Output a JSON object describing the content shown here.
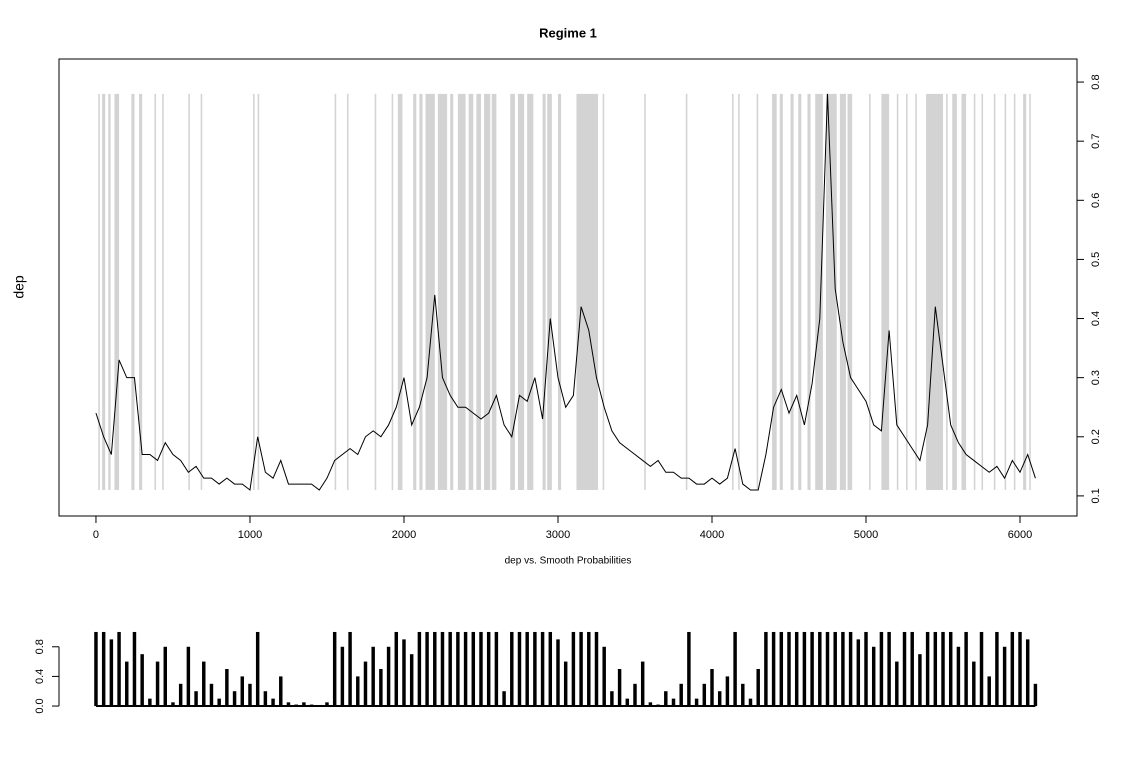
{
  "chart_data": [
    {
      "type": "line",
      "title": "Regime 1",
      "y_label": "dep",
      "x_label": "dep vs. Smooth Probabilities",
      "color": "#000000",
      "shade_color": "#d3d3d3",
      "y_axis_side": "right",
      "xlim": [
        -240,
        6370
      ],
      "xticks": [
        0,
        1000,
        2000,
        3000,
        4000,
        5000,
        6000
      ],
      "ylim": [
        0.066,
        0.839
      ],
      "yticks": [
        0.1,
        0.2,
        0.3,
        0.4,
        0.5,
        0.6,
        0.7,
        0.8
      ],
      "x": [
        0,
        50,
        100,
        150,
        200,
        250,
        300,
        350,
        400,
        450,
        500,
        550,
        600,
        650,
        700,
        750,
        800,
        850,
        900,
        950,
        1000,
        1050,
        1100,
        1150,
        1200,
        1250,
        1300,
        1350,
        1400,
        1450,
        1500,
        1550,
        1600,
        1650,
        1700,
        1750,
        1800,
        1850,
        1900,
        1950,
        2000,
        2050,
        2100,
        2150,
        2200,
        2250,
        2300,
        2350,
        2400,
        2450,
        2500,
        2550,
        2600,
        2650,
        2700,
        2750,
        2800,
        2850,
        2900,
        2950,
        3000,
        3050,
        3100,
        3150,
        3200,
        3250,
        3300,
        3350,
        3400,
        3450,
        3500,
        3550,
        3600,
        3650,
        3700,
        3750,
        3800,
        3850,
        3900,
        3950,
        4000,
        4050,
        4100,
        4150,
        4200,
        4250,
        4300,
        4350,
        4400,
        4450,
        4500,
        4550,
        4600,
        4650,
        4700,
        4750,
        4800,
        4850,
        4900,
        4950,
        5000,
        5050,
        5100,
        5150,
        5200,
        5250,
        5300,
        5350,
        5400,
        5450,
        5500,
        5550,
        5600,
        5650,
        5700,
        5750,
        5800,
        5850,
        5900,
        5950,
        6000,
        6050,
        6100
      ],
      "values": [
        0.24,
        0.2,
        0.17,
        0.33,
        0.3,
        0.3,
        0.17,
        0.17,
        0.16,
        0.19,
        0.17,
        0.16,
        0.14,
        0.15,
        0.13,
        0.13,
        0.12,
        0.13,
        0.12,
        0.12,
        0.11,
        0.2,
        0.14,
        0.13,
        0.16,
        0.12,
        0.12,
        0.12,
        0.12,
        0.11,
        0.13,
        0.16,
        0.17,
        0.18,
        0.17,
        0.2,
        0.21,
        0.2,
        0.22,
        0.25,
        0.3,
        0.22,
        0.25,
        0.3,
        0.44,
        0.3,
        0.27,
        0.25,
        0.25,
        0.24,
        0.23,
        0.24,
        0.27,
        0.22,
        0.2,
        0.27,
        0.26,
        0.3,
        0.23,
        0.4,
        0.3,
        0.25,
        0.27,
        0.42,
        0.38,
        0.3,
        0.25,
        0.21,
        0.19,
        0.18,
        0.17,
        0.16,
        0.15,
        0.16,
        0.14,
        0.14,
        0.13,
        0.13,
        0.12,
        0.12,
        0.13,
        0.12,
        0.13,
        0.18,
        0.12,
        0.11,
        0.11,
        0.17,
        0.25,
        0.28,
        0.24,
        0.27,
        0.22,
        0.29,
        0.4,
        0.78,
        0.45,
        0.36,
        0.3,
        0.28,
        0.26,
        0.22,
        0.21,
        0.38,
        0.22,
        0.2,
        0.18,
        0.16,
        0.22,
        0.42,
        0.32,
        0.22,
        0.19,
        0.17,
        0.16,
        0.15,
        0.14,
        0.15,
        0.13,
        0.16,
        0.14,
        0.17,
        0.13
      ],
      "shaded": [
        [
          15,
          25
        ],
        [
          40,
          60
        ],
        [
          80,
          95
        ],
        [
          120,
          150
        ],
        [
          230,
          250
        ],
        [
          280,
          300
        ],
        [
          380,
          390
        ],
        [
          430,
          440
        ],
        [
          600,
          610
        ],
        [
          680,
          690
        ],
        [
          1020,
          1030
        ],
        [
          1050,
          1060
        ],
        [
          1550,
          1560
        ],
        [
          1630,
          1640
        ],
        [
          1810,
          1820
        ],
        [
          1920,
          1930
        ],
        [
          1960,
          1990
        ],
        [
          2060,
          2080
        ],
        [
          2100,
          2120
        ],
        [
          2140,
          2200
        ],
        [
          2220,
          2280
        ],
        [
          2300,
          2320
        ],
        [
          2350,
          2400
        ],
        [
          2420,
          2450
        ],
        [
          2470,
          2500
        ],
        [
          2520,
          2560
        ],
        [
          2570,
          2600
        ],
        [
          2690,
          2720
        ],
        [
          2740,
          2780
        ],
        [
          2800,
          2840
        ],
        [
          2900,
          2920
        ],
        [
          2930,
          2960
        ],
        [
          3000,
          3020
        ],
        [
          3120,
          3260
        ],
        [
          3290,
          3300
        ],
        [
          3560,
          3570
        ],
        [
          3830,
          3840
        ],
        [
          4130,
          4140
        ],
        [
          4170,
          4180
        ],
        [
          4290,
          4300
        ],
        [
          4390,
          4420
        ],
        [
          4440,
          4460
        ],
        [
          4510,
          4530
        ],
        [
          4560,
          4580
        ],
        [
          4620,
          4640
        ],
        [
          4670,
          4720
        ],
        [
          4740,
          4810
        ],
        [
          4830,
          4870
        ],
        [
          4880,
          4910
        ],
        [
          5020,
          5030
        ],
        [
          5100,
          5150
        ],
        [
          5200,
          5210
        ],
        [
          5260,
          5270
        ],
        [
          5320,
          5330
        ],
        [
          5390,
          5500
        ],
        [
          5520,
          5530
        ],
        [
          5560,
          5590
        ],
        [
          5620,
          5650
        ],
        [
          5700,
          5710
        ],
        [
          5750,
          5760
        ],
        [
          5830,
          5840
        ],
        [
          5900,
          5910
        ],
        [
          5960,
          5970
        ],
        [
          6020,
          6040
        ],
        [
          6060,
          6070
        ]
      ]
    },
    {
      "type": "bar",
      "color": "#000000",
      "xlim": [
        -240,
        6370
      ],
      "ylim": [
        -0.04,
        1.04
      ],
      "yticks": [
        {
          "value": 0,
          "label": "0.0"
        },
        0.4,
        0.8
      ],
      "x": [
        0,
        50,
        100,
        150,
        200,
        250,
        300,
        350,
        400,
        450,
        500,
        550,
        600,
        650,
        700,
        750,
        800,
        850,
        900,
        950,
        1000,
        1050,
        1100,
        1150,
        1200,
        1250,
        1300,
        1350,
        1400,
        1450,
        1500,
        1550,
        1600,
        1650,
        1700,
        1750,
        1800,
        1850,
        1900,
        1950,
        2000,
        2050,
        2100,
        2150,
        2200,
        2250,
        2300,
        2350,
        2400,
        2450,
        2500,
        2550,
        2600,
        2650,
        2700,
        2750,
        2800,
        2850,
        2900,
        2950,
        3000,
        3050,
        3100,
        3150,
        3200,
        3250,
        3300,
        3350,
        3400,
        3450,
        3500,
        3550,
        3600,
        3650,
        3700,
        3750,
        3800,
        3850,
        3900,
        3950,
        4000,
        4050,
        4100,
        4150,
        4200,
        4250,
        4300,
        4350,
        4400,
        4450,
        4500,
        4550,
        4600,
        4650,
        4700,
        4750,
        4800,
        4850,
        4900,
        4950,
        5000,
        5050,
        5100,
        5150,
        5200,
        5250,
        5300,
        5350,
        5400,
        5450,
        5500,
        5550,
        5600,
        5650,
        5700,
        5750,
        5800,
        5850,
        5900,
        5950,
        6000,
        6050,
        6100
      ],
      "values": [
        1,
        1,
        0.9,
        1,
        0.6,
        1,
        0.7,
        0.1,
        0.6,
        0.8,
        0.05,
        0.3,
        0.8,
        0.2,
        0.6,
        0.3,
        0.1,
        0.5,
        0.2,
        0.4,
        0.3,
        1,
        0.2,
        0.1,
        0.4,
        0.05,
        0.02,
        0.05,
        0.02,
        0.01,
        0.05,
        1,
        0.8,
        1,
        0.4,
        0.6,
        0.8,
        0.5,
        0.8,
        1,
        0.9,
        0.7,
        1,
        1,
        1,
        1,
        1,
        1,
        1,
        1,
        1,
        1,
        1,
        0.2,
        1,
        1,
        1,
        1,
        1,
        1,
        0.9,
        0.6,
        1,
        1,
        1,
        1,
        0.8,
        0.2,
        0.5,
        0.1,
        0.3,
        0.6,
        0.05,
        0.02,
        0.2,
        0.1,
        0.3,
        1,
        0.1,
        0.3,
        0.5,
        0.2,
        0.4,
        1,
        0.3,
        0.1,
        0.5,
        1,
        1,
        1,
        1,
        1,
        1,
        1,
        1,
        1,
        1,
        1,
        1,
        0.9,
        1,
        0.8,
        1,
        1,
        0.6,
        1,
        1,
        0.7,
        1,
        1,
        1,
        1,
        0.8,
        1,
        0.6,
        1,
        0.4,
        1,
        0.8,
        1,
        1,
        0.9,
        0.3
      ]
    }
  ]
}
